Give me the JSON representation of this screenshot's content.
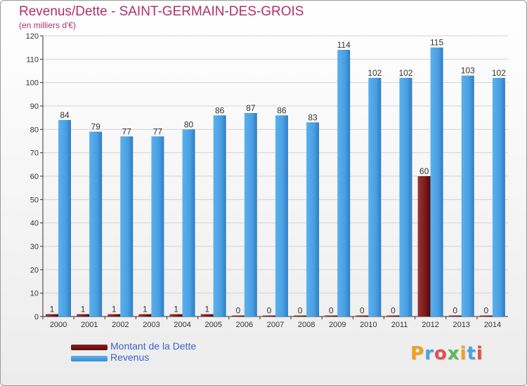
{
  "colors": {
    "title": "#b0306a",
    "revenus": "#4a9fe2",
    "revenus_dark": "#2f7cc3",
    "dette": "#7a1a1a",
    "dette_dark": "#4a0808",
    "legend_text": "#3f5fd0",
    "axis": "#333333",
    "grid": "#d4d4d4"
  },
  "brand": {
    "logo_text": "Proxiti",
    "letter_colors": [
      "#f0a020",
      "#4aa3df",
      "#e05050",
      "#5cb85c",
      "#f0a020",
      "#4aa3df",
      "#e05050"
    ]
  },
  "chart_data": {
    "type": "bar",
    "title": "Revenus/Dette - SAINT-GERMAIN-DES-GROIS",
    "subtitle": "(en milliers d'€)",
    "categories": [
      "2000",
      "2001",
      "2002",
      "2003",
      "2004",
      "2005",
      "2006",
      "2007",
      "2008",
      "2009",
      "2010",
      "2011",
      "2012",
      "2013",
      "2014"
    ],
    "series": [
      {
        "name": "Montant de la Dette",
        "values": [
          1,
          1,
          1,
          1,
          1,
          1,
          0,
          0,
          0,
          0,
          0,
          0,
          60,
          0,
          0
        ]
      },
      {
        "name": "Revenus",
        "values": [
          84,
          79,
          77,
          77,
          80,
          86,
          87,
          86,
          83,
          114,
          102,
          102,
          115,
          103,
          102
        ]
      }
    ],
    "ylim": [
      0,
      120
    ],
    "yticks": [
      0,
      10,
      20,
      30,
      40,
      50,
      60,
      70,
      80,
      90,
      100,
      110,
      120
    ],
    "grid": true,
    "legend_position": "bottom-left"
  }
}
